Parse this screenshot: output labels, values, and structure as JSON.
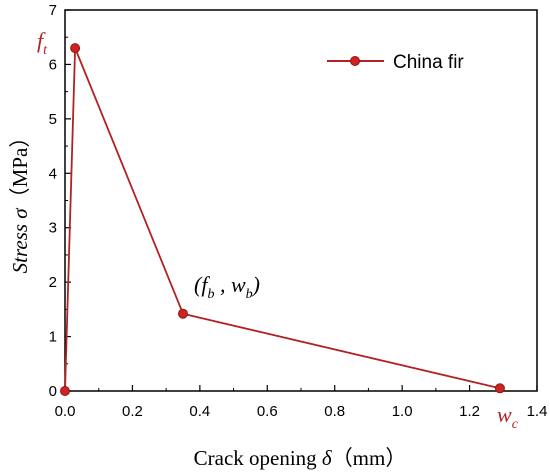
{
  "chart_data": {
    "type": "line",
    "title": "",
    "xlabel": {
      "prefix": "Crack opening ",
      "symbol": "δ",
      "unit": "（mm）"
    },
    "ylabel": {
      "prefix": "Stress ",
      "symbol": "σ",
      "unit": "（MPa）"
    },
    "xlim": [
      0,
      1.4
    ],
    "ylim": [
      0,
      7
    ],
    "xticks": [
      "0.0",
      "0.2",
      "0.4",
      "0.6",
      "0.8",
      "1.0",
      "1.2",
      "1.4"
    ],
    "yticks": [
      "0",
      "1",
      "2",
      "3",
      "4",
      "5",
      "6",
      "7"
    ],
    "grid": false,
    "legend_position": "top-right",
    "series": [
      {
        "name": "China fir",
        "color": "#b22222",
        "x": [
          0,
          0.03,
          0.35,
          1.29
        ],
        "y": [
          0,
          6.3,
          1.42,
          0.05
        ]
      }
    ],
    "annotations": [
      {
        "label": "f",
        "sub": "t",
        "color": "#b22222",
        "x": 0,
        "y": 6.3
      },
      {
        "label": "(f",
        "sub": "b",
        "mid": " , w",
        "sub2": "b",
        "end": ")",
        "color": "#000000",
        "x": 0.35,
        "y": 1.42
      },
      {
        "label": "w",
        "sub": "c",
        "color": "#b22222",
        "x": 1.29,
        "y": 0.05
      }
    ]
  }
}
